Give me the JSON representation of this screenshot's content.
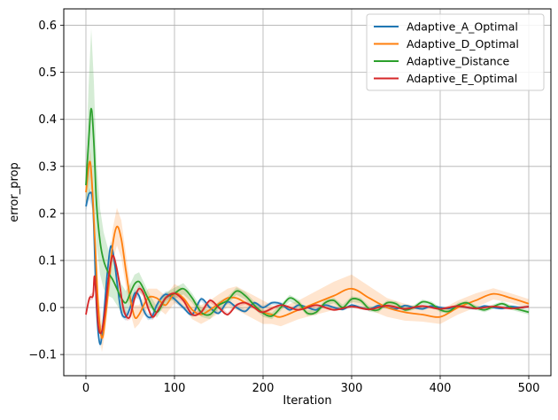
{
  "chart_data": {
    "type": "line",
    "title": "",
    "xlabel": "Iteration",
    "ylabel": "error_prop",
    "xlim": [
      -25,
      525
    ],
    "ylim": [
      -0.145,
      0.635
    ],
    "xticks": [
      0,
      100,
      200,
      300,
      400,
      500
    ],
    "xtick_labels": [
      "0",
      "100",
      "200",
      "300",
      "400",
      "500"
    ],
    "yticks": [
      -0.1,
      0.0,
      0.1,
      0.2,
      0.3,
      0.4,
      0.5,
      0.6
    ],
    "ytick_labels": [
      "−0.1",
      "0.0",
      "0.1",
      "0.2",
      "0.3",
      "0.4",
      "0.5",
      "0.6"
    ],
    "grid": true,
    "legend_position": "top-right",
    "series": [
      {
        "name": "Adaptive_A_Optimal",
        "color": "#1f77b4",
        "x": [
          0,
          4,
          8,
          12,
          16,
          20,
          24,
          28,
          32,
          36,
          40,
          45,
          50,
          55,
          60,
          65,
          70,
          75,
          80,
          85,
          90,
          95,
          100,
          110,
          120,
          130,
          140,
          150,
          160,
          170,
          180,
          190,
          200,
          210,
          220,
          230,
          240,
          250,
          260,
          270,
          280,
          290,
          300,
          310,
          320,
          330,
          340,
          350,
          360,
          370,
          380,
          390,
          400,
          410,
          420,
          430,
          440,
          450,
          460,
          470,
          480,
          490,
          500
        ],
        "y": [
          0.215,
          0.243,
          0.215,
          0.0,
          -0.078,
          -0.02,
          0.07,
          0.13,
          0.1,
          0.04,
          -0.01,
          -0.02,
          0.0,
          0.03,
          0.025,
          -0.005,
          -0.02,
          -0.018,
          0.005,
          0.02,
          0.028,
          0.025,
          0.018,
          0.0,
          -0.015,
          0.018,
          0.0,
          -0.012,
          0.012,
          0.0,
          -0.008,
          0.01,
          0.0,
          0.01,
          0.008,
          -0.005,
          0.005,
          0.0,
          -0.005,
          0.005,
          0.0,
          -0.004,
          0.005,
          0.0,
          -0.004,
          0.004,
          0.0,
          -0.003,
          0.004,
          0.0,
          -0.003,
          0.003,
          0.0,
          -0.002,
          0.003,
          0.0,
          -0.002,
          0.003,
          0.0,
          -0.002,
          0.002,
          0.0,
          0.002
        ],
        "band": [
          0.01,
          0.012,
          0.012,
          0.012,
          0.01,
          0.01,
          0.012,
          0.012,
          0.012,
          0.01,
          0.01,
          0.008,
          0.008,
          0.008,
          0.008,
          0.008,
          0.007,
          0.007,
          0.006,
          0.006,
          0.006,
          0.006,
          0.006,
          0.005,
          0.005,
          0.005,
          0.005,
          0.004,
          0.004,
          0.004,
          0.004,
          0.004,
          0.004,
          0.004,
          0.004,
          0.004,
          0.003,
          0.003,
          0.003,
          0.003,
          0.003,
          0.003,
          0.003,
          0.003,
          0.003,
          0.003,
          0.003,
          0.003,
          0.003,
          0.003,
          0.003,
          0.003,
          0.003,
          0.003,
          0.003,
          0.003,
          0.003,
          0.003,
          0.003,
          0.003,
          0.003,
          0.003,
          0.003
        ]
      },
      {
        "name": "Adaptive_D_Optimal",
        "color": "#ff7f0e",
        "x": [
          0,
          5,
          10,
          14,
          18,
          22,
          26,
          30,
          35,
          40,
          45,
          50,
          55,
          60,
          70,
          80,
          90,
          100,
          110,
          120,
          130,
          140,
          150,
          160,
          170,
          180,
          190,
          200,
          210,
          220,
          240,
          260,
          280,
          300,
          320,
          340,
          360,
          380,
          400,
          420,
          440,
          460,
          480,
          500
        ],
        "y": [
          0.245,
          0.308,
          0.15,
          0.0,
          -0.065,
          -0.02,
          0.05,
          0.13,
          0.172,
          0.145,
          0.08,
          0.02,
          -0.02,
          -0.015,
          0.02,
          0.02,
          0.005,
          0.03,
          0.02,
          -0.005,
          -0.015,
          -0.005,
          0.008,
          0.02,
          0.02,
          0.01,
          0.0,
          -0.01,
          -0.015,
          -0.02,
          -0.005,
          0.01,
          0.025,
          0.04,
          0.02,
          0.0,
          -0.01,
          -0.015,
          -0.02,
          0.0,
          0.015,
          0.029,
          0.02,
          0.008
        ],
        "band": [
          0.02,
          0.03,
          0.04,
          0.03,
          0.03,
          0.03,
          0.03,
          0.035,
          0.04,
          0.04,
          0.035,
          0.03,
          0.025,
          0.02,
          0.02,
          0.02,
          0.02,
          0.02,
          0.02,
          0.02,
          0.02,
          0.02,
          0.02,
          0.02,
          0.025,
          0.025,
          0.025,
          0.025,
          0.02,
          0.02,
          0.02,
          0.025,
          0.03,
          0.03,
          0.025,
          0.02,
          0.018,
          0.015,
          0.015,
          0.015,
          0.015,
          0.012,
          0.01,
          0.01
        ]
      },
      {
        "name": "Adaptive_Distance",
        "color": "#2ca02c",
        "x": [
          0,
          3,
          6,
          9,
          12,
          16,
          20,
          25,
          30,
          35,
          40,
          45,
          50,
          55,
          60,
          65,
          70,
          80,
          90,
          100,
          110,
          120,
          130,
          140,
          150,
          160,
          170,
          180,
          190,
          200,
          210,
          220,
          230,
          240,
          250,
          260,
          270,
          280,
          290,
          300,
          310,
          320,
          330,
          340,
          350,
          360,
          370,
          380,
          390,
          400,
          410,
          420,
          430,
          440,
          450,
          460,
          470,
          480,
          490,
          500
        ],
        "y": [
          0.26,
          0.35,
          0.423,
          0.35,
          0.22,
          0.14,
          0.1,
          0.075,
          0.06,
          0.04,
          0.02,
          0.01,
          0.03,
          0.05,
          0.055,
          0.04,
          0.02,
          -0.01,
          0.02,
          0.03,
          0.04,
          0.02,
          -0.01,
          -0.015,
          0.005,
          0.015,
          0.035,
          0.025,
          0.005,
          -0.012,
          -0.018,
          0.0,
          0.02,
          0.01,
          -0.012,
          -0.01,
          0.01,
          0.015,
          0.0,
          0.018,
          0.015,
          -0.003,
          -0.005,
          0.01,
          0.008,
          -0.005,
          0.0,
          0.012,
          0.008,
          -0.005,
          -0.008,
          0.005,
          0.01,
          0.0,
          -0.005,
          0.002,
          0.008,
          0.0,
          -0.005,
          -0.01
        ],
        "band": [
          0.04,
          0.12,
          0.17,
          0.13,
          0.09,
          0.07,
          0.06,
          0.05,
          0.04,
          0.035,
          0.03,
          0.025,
          0.02,
          0.02,
          0.02,
          0.015,
          0.015,
          0.012,
          0.012,
          0.012,
          0.012,
          0.01,
          0.01,
          0.01,
          0.008,
          0.008,
          0.008,
          0.008,
          0.008,
          0.008,
          0.007,
          0.007,
          0.007,
          0.007,
          0.006,
          0.006,
          0.006,
          0.006,
          0.006,
          0.006,
          0.006,
          0.006,
          0.006,
          0.005,
          0.005,
          0.005,
          0.005,
          0.005,
          0.005,
          0.005,
          0.005,
          0.005,
          0.005,
          0.005,
          0.005,
          0.005,
          0.005,
          0.005,
          0.005,
          0.005
        ]
      },
      {
        "name": "Adaptive_E_Optimal",
        "color": "#d62728",
        "x": [
          0,
          4,
          8,
          10,
          14,
          18,
          22,
          26,
          30,
          34,
          38,
          42,
          46,
          50,
          55,
          60,
          65,
          70,
          75,
          80,
          90,
          100,
          110,
          120,
          130,
          140,
          150,
          160,
          170,
          180,
          190,
          200,
          220,
          240,
          260,
          280,
          300,
          320,
          340,
          360,
          380,
          400,
          420,
          440,
          460,
          480,
          500
        ],
        "y": [
          -0.015,
          0.02,
          0.025,
          0.065,
          -0.04,
          -0.05,
          0.0,
          0.07,
          0.11,
          0.09,
          0.05,
          0.0,
          -0.02,
          -0.018,
          0.02,
          0.04,
          0.03,
          0.0,
          -0.02,
          -0.01,
          0.02,
          0.03,
          0.015,
          -0.015,
          -0.01,
          0.015,
          0.0,
          -0.015,
          0.005,
          0.01,
          0.0,
          -0.01,
          0.005,
          -0.005,
          0.005,
          -0.005,
          0.002,
          -0.004,
          0.004,
          -0.003,
          0.003,
          -0.003,
          0.003,
          -0.002,
          0.002,
          -0.002,
          0.002
        ],
        "band": [
          0.005,
          0.006,
          0.008,
          0.012,
          0.012,
          0.01,
          0.01,
          0.012,
          0.012,
          0.012,
          0.01,
          0.01,
          0.008,
          0.008,
          0.008,
          0.008,
          0.007,
          0.007,
          0.007,
          0.006,
          0.006,
          0.006,
          0.005,
          0.005,
          0.005,
          0.005,
          0.004,
          0.004,
          0.004,
          0.004,
          0.004,
          0.004,
          0.003,
          0.003,
          0.003,
          0.003,
          0.003,
          0.003,
          0.003,
          0.003,
          0.003,
          0.003,
          0.003,
          0.003,
          0.003,
          0.003,
          0.003
        ]
      }
    ]
  }
}
